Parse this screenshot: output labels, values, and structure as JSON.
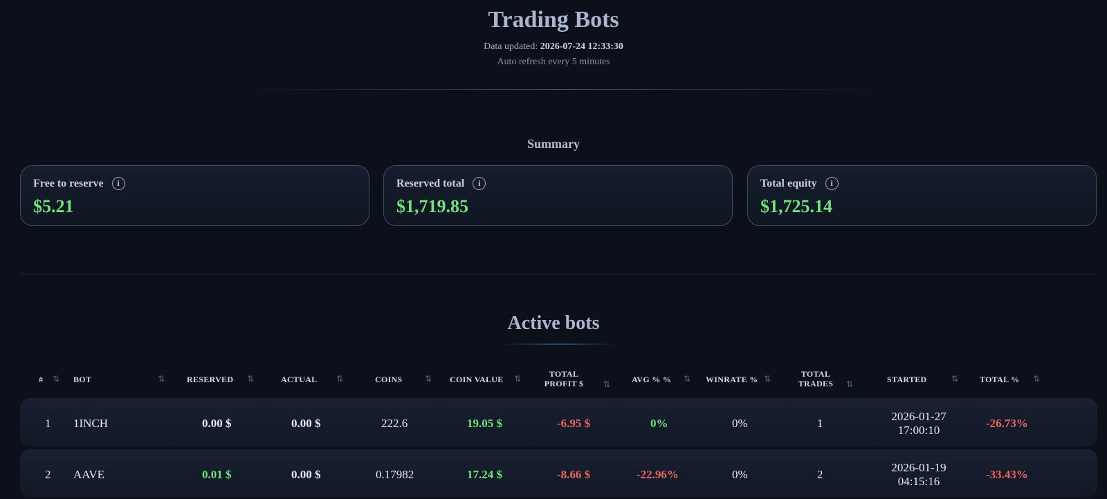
{
  "header": {
    "title": "Trading Bots",
    "updated_label": "Data updated: ",
    "updated_value": "2026-07-24 12:33:30",
    "refresh_note": "Auto refresh every 5 minutes"
  },
  "summary": {
    "title": "Summary",
    "cards": [
      {
        "label": "Free to reserve",
        "value": "$5.21"
      },
      {
        "label": "Reserved total",
        "value": "$1,719.85"
      },
      {
        "label": "Total equity",
        "value": "$1,725.14"
      }
    ]
  },
  "active": {
    "title": "Active bots",
    "columns": {
      "index": "#",
      "bot": "BOT",
      "reserved": "RESERVED",
      "actual": "ACTUAL",
      "coins": "COINS",
      "coin_value": "COIN VALUE",
      "total_profit_1": "TOTAL",
      "total_profit_2": "PROFIT $",
      "avg": "AVG % %",
      "winrate": "WINRATE %",
      "total_trades_1": "TOTAL",
      "total_trades_2": "TRADES",
      "started": "STARTED",
      "total_pct": "TOTAL %"
    },
    "sort_icon": "⇅",
    "rows": [
      {
        "index": "1",
        "bot": "1INCH",
        "reserved": "0.00 $",
        "actual": "0.00 $",
        "coins": "222.6",
        "coin_value": "19.05 $",
        "total_profit": "-6.95 $",
        "avg": "0%",
        "winrate": "0%",
        "total_trades": "1",
        "started_date": "2026-01-27",
        "started_time": "17:00:10",
        "total_pct": "-26.73%"
      },
      {
        "index": "2",
        "bot": "AAVE",
        "reserved": "0.01 $",
        "actual": "0.00 $",
        "coins": "0.17982",
        "coin_value": "17.24 $",
        "total_profit": "-8.66 $",
        "avg": "-22.96%",
        "winrate": "0%",
        "total_trades": "2",
        "started_date": "2026-01-19",
        "started_time": "04:15:16",
        "total_pct": "-33.43%"
      }
    ]
  },
  "colors": {
    "background": "#0b101a",
    "positive": "#74e27a",
    "negative": "#f0645f",
    "card_border": "#3b4e66"
  },
  "icons": {
    "info": "info-icon",
    "sort": "sort-icon"
  }
}
